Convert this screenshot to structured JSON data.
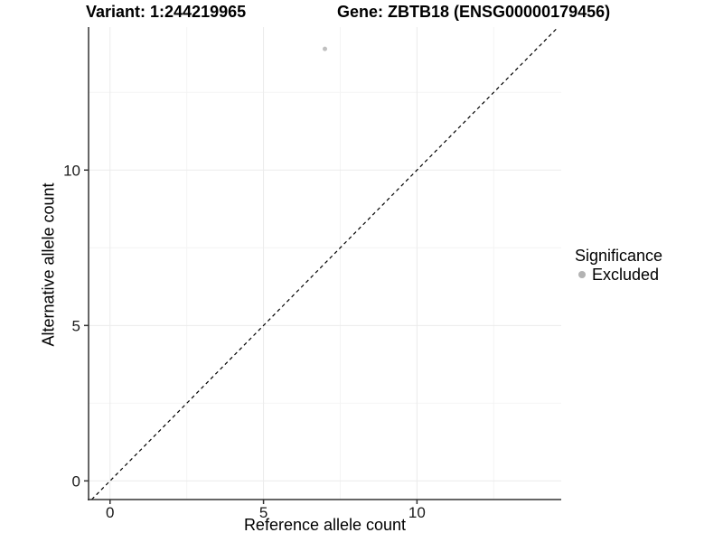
{
  "chart_data": {
    "type": "scatter",
    "title_left": "Variant: 1:244219965",
    "title_right": "Gene: ZBTB18 (ENSG00000179456)",
    "xlabel": "Reference allele count",
    "ylabel": "Alternative allele count",
    "xlim": [
      -0.7,
      14.7
    ],
    "ylim": [
      -0.6,
      14.6
    ],
    "x_ticks": [
      0,
      5,
      10
    ],
    "y_ticks": [
      0,
      5,
      10
    ],
    "x_minor_ticks": [
      2.5,
      7.5,
      12.5
    ],
    "y_minor_ticks": [
      2.5,
      7.5,
      12.5
    ],
    "grid": "major+minor",
    "identity_line": {
      "style": "dashed",
      "slope": 1,
      "intercept": 0,
      "color": "#000000"
    },
    "series": [
      {
        "name": "Excluded",
        "color": "#c0c0c0",
        "points": [
          {
            "x": 7,
            "y": 13.9
          }
        ]
      }
    ],
    "legend": {
      "title": "Significance",
      "position": "right",
      "items": [
        {
          "label": "Excluded",
          "color": "#b3b3b3"
        }
      ]
    },
    "colors": {
      "axis": "#333333",
      "tick_text": "#1a1a1a",
      "grid_major": "#ebebeb",
      "grid_minor": "#f4f4f4",
      "background": "#ffffff"
    }
  }
}
